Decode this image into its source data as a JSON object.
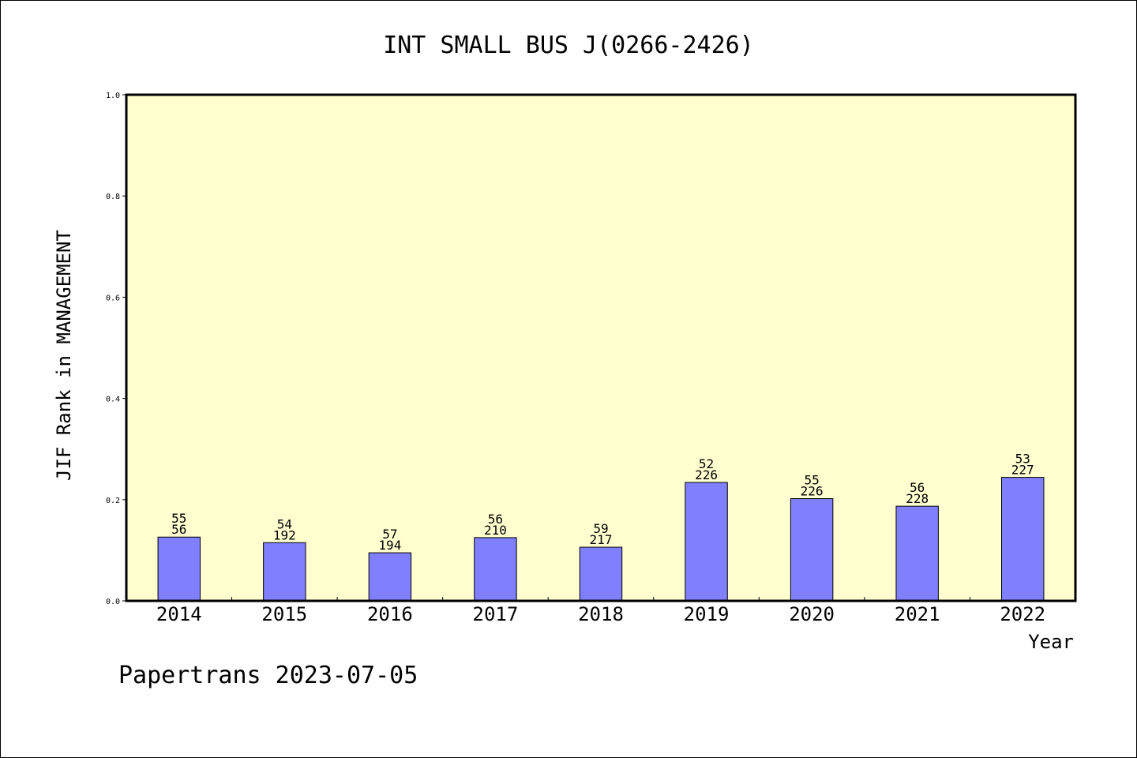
{
  "chart_data": {
    "type": "bar",
    "title": "INT SMALL BUS J(0266-2426)",
    "ylabel": "JIF Rank in MANAGEMENT",
    "xlabel": "Year",
    "ylim": [
      0,
      1.0
    ],
    "yticks": [
      "0.0",
      "0.2",
      "0.4",
      "0.6",
      "0.8",
      "1.0"
    ],
    "grid": false,
    "categories": [
      "2014",
      "2015",
      "2016",
      "2017",
      "2018",
      "2019",
      "2020",
      "2021",
      "2022"
    ],
    "values": [
      0.126,
      0.115,
      0.095,
      0.125,
      0.106,
      0.234,
      0.202,
      0.187,
      0.244
    ],
    "label_top": [
      "55",
      "54",
      "57",
      "56",
      "59",
      "52",
      "55",
      "56",
      "53"
    ],
    "label_bottom": [
      "56",
      "192",
      "194",
      "210",
      "217",
      "226",
      "226",
      "228",
      "227"
    ],
    "colors": {
      "plot_background": "#ffffd0",
      "bar_fill": "#8080ff",
      "bar_stroke": "#000000"
    }
  },
  "footer": "Papertrans 2023-07-05"
}
